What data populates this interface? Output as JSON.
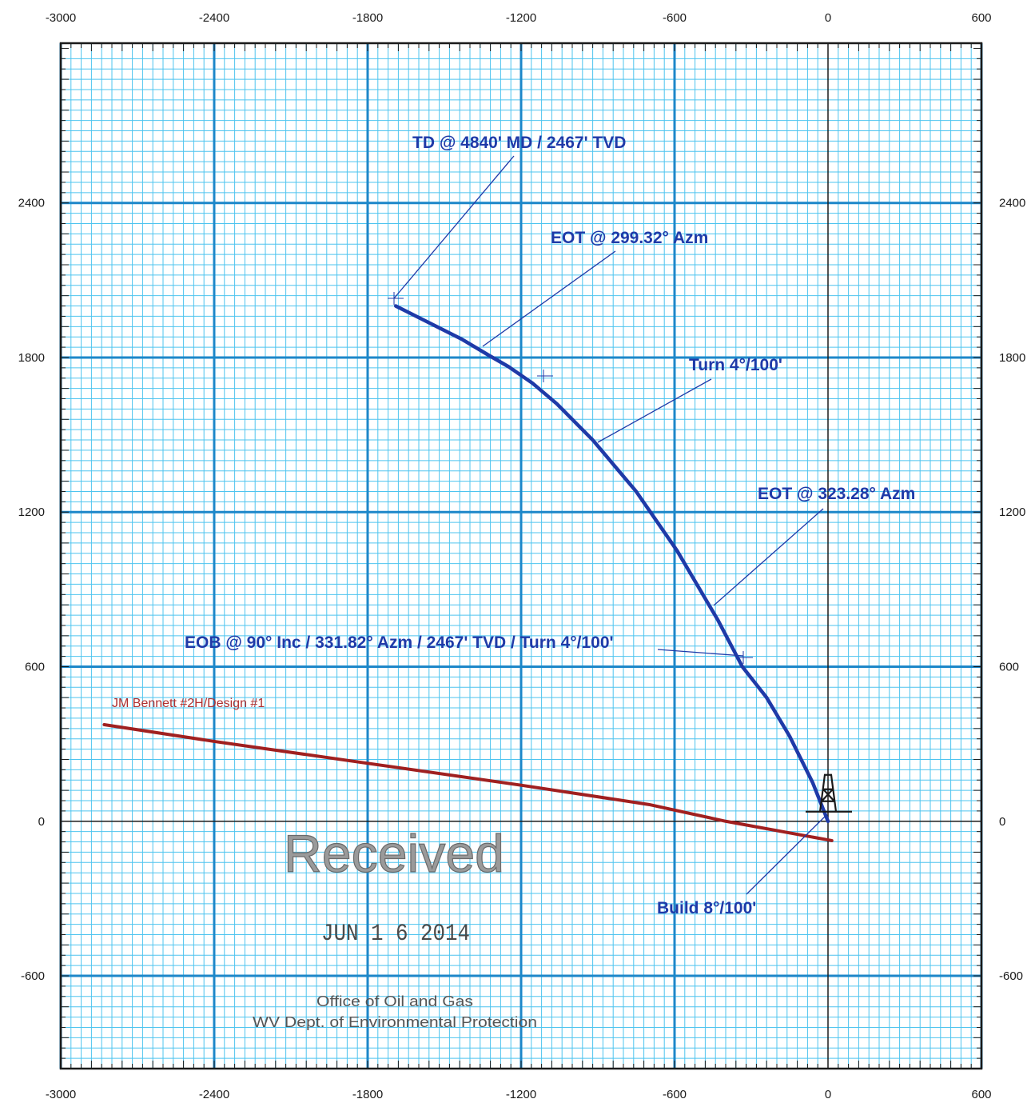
{
  "chart_data": {
    "type": "line",
    "xlabel": "",
    "ylabel": "",
    "xlim": [
      -3000,
      600
    ],
    "ylim": [
      -960,
      3020
    ],
    "x_ticks": [
      -3000,
      -2400,
      -1800,
      -1200,
      -600,
      0,
      600
    ],
    "y_ticks": [
      2400,
      1800,
      1200,
      600,
      0,
      -600
    ],
    "grid": true,
    "series": [
      {
        "name": "",
        "color": "#1f3aa8",
        "x": [
          0,
          -60,
          -150,
          -240,
          -335,
          -430,
          -590,
          -750,
          -920,
          -1060,
          -1155,
          -1250,
          -1320,
          -1430,
          -1690
        ],
        "y": [
          0,
          150,
          330,
          480,
          600,
          780,
          1050,
          1280,
          1480,
          1620,
          1700,
          1765,
          1805,
          1870,
          2000
        ]
      },
      {
        "name": "JM Bennett #2H/Design #1",
        "color": "#a02020",
        "x": [
          15,
          -400,
          -700,
          -1200,
          -1800,
          -2400,
          -2830
        ],
        "y": [
          -75,
          0,
          65,
          140,
          225,
          310,
          375
        ]
      }
    ],
    "annotations": [
      {
        "text": "TD @ 4840' MD / 2467' TVD"
      },
      {
        "text": "EOT @ 299.32° Azm"
      },
      {
        "text": "Turn 4°/100'"
      },
      {
        "text": "EOT @ 323.28° Azm"
      },
      {
        "text": "EOB @ 90° Inc / 331.82° Azm / 2467' TVD / Turn 4°/100'"
      },
      {
        "text": "Build 8°/100'"
      }
    ],
    "colors": {
      "grid_minor": "#4ec4ef",
      "grid_major": "#1d87c9",
      "axis": "#1a1a1a",
      "frame": "#1a1a1a"
    }
  },
  "stamp": {
    "title": "Received",
    "date": "JUN 1 6 2014",
    "office_line1": "Office of Oil and Gas",
    "office_line2": "WV Dept. of Environmental Protection"
  },
  "icons": {
    "rig": "drilling-rig-icon"
  }
}
